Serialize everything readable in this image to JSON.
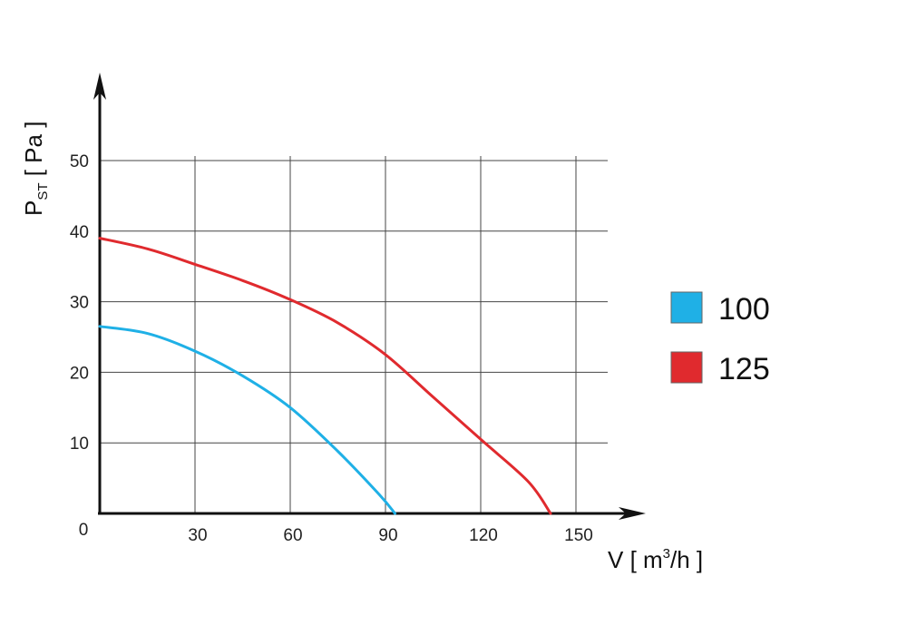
{
  "chart_data": {
    "type": "line",
    "title": "",
    "xlabel": {
      "main": "V [ m",
      "sup": "3",
      "tail": "/h ]"
    },
    "ylabel": {
      "main": "P",
      "sub": "ST",
      "tail": " [ Pa ]"
    },
    "xlim": [
      0,
      160
    ],
    "ylim": [
      0,
      55
    ],
    "origin_label": "0",
    "xticks": [
      30,
      60,
      90,
      120,
      150
    ],
    "yticks": [
      10,
      20,
      30,
      40,
      50
    ],
    "grid": true,
    "legend_position": "right",
    "series": [
      {
        "name": "100",
        "color": "#1fb0e6",
        "points": [
          [
            0,
            26.5
          ],
          [
            15,
            25.5
          ],
          [
            30,
            23
          ],
          [
            45,
            19.5
          ],
          [
            60,
            15
          ],
          [
            75,
            8.8
          ],
          [
            88,
            2.7
          ],
          [
            93,
            0
          ]
        ]
      },
      {
        "name": "125",
        "color": "#e02a2e",
        "points": [
          [
            0,
            39
          ],
          [
            15,
            37.5
          ],
          [
            30,
            35.3
          ],
          [
            45,
            33
          ],
          [
            60,
            30.3
          ],
          [
            75,
            27
          ],
          [
            90,
            22.5
          ],
          [
            105,
            16.5
          ],
          [
            120,
            10.5
          ],
          [
            135,
            4.5
          ],
          [
            142,
            0
          ]
        ]
      }
    ]
  }
}
